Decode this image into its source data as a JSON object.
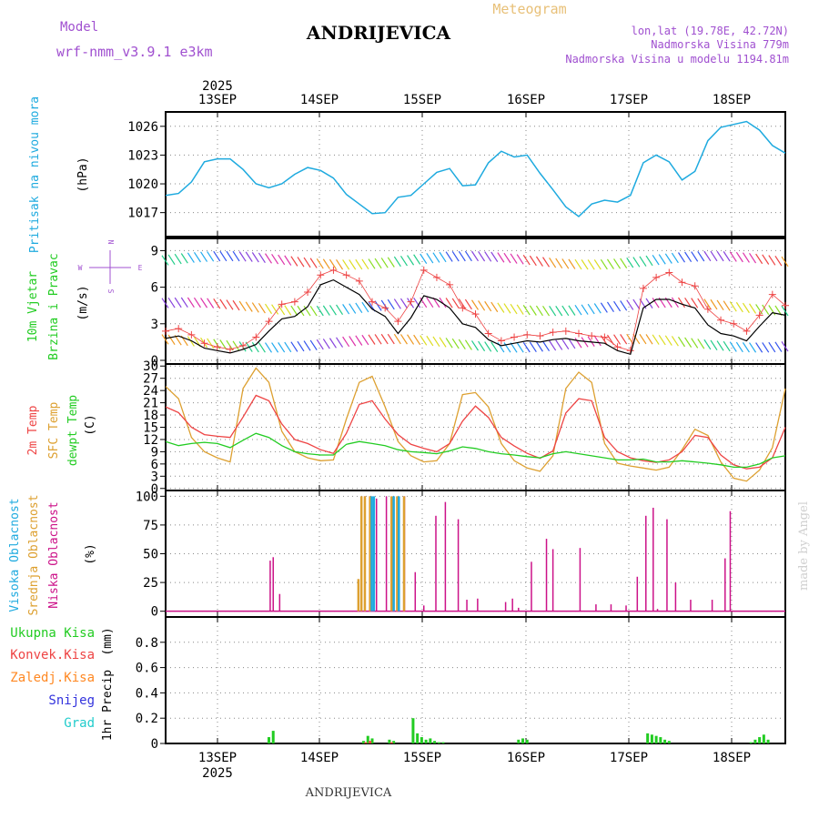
{
  "header": {
    "model_label": "Model",
    "model_name": "wrf-nmm_v3.9.1 e3km",
    "location": "ANDRIJEVICA",
    "meteogram": "Meteogram",
    "lonlat": "lon,lat (19.78E, 42.72N)",
    "elevation": "Nadmorska Visina 779m",
    "model_elevation": "Nadmorska Visina u modelu 1194.81m"
  },
  "footer": {
    "location": "ANDRIJEVICA",
    "watermark": "made by Angel"
  },
  "colors": {
    "pressure": "#1eaadf",
    "wind_speed": "#000000",
    "gust": "#ee4444",
    "t2m": "#ee4444",
    "sfc": "#dda030",
    "dewpt": "#22cc22",
    "high_cloud": "#1eaadf",
    "mid_cloud": "#dda030",
    "low_cloud": "#cc1188",
    "total_precip": "#22cc22",
    "conv_precip": "#ee4444",
    "frozen": "#ff8822",
    "snow": "#3333dd",
    "hail": "#22cccc",
    "model_purple": "#a050d0"
  },
  "chart_data": [
    {
      "id": "pressure",
      "type": "line",
      "ylabel_main": "Pritisak na nivou mora",
      "ylabel_unit": "(hPa)",
      "ylim": [
        1014.5,
        1027.5
      ],
      "yticks": [
        "1017",
        "1020",
        "1023",
        "1026"
      ],
      "xlim": [
        0,
        144
      ],
      "x_top_labels": [
        "13SEP",
        "14SEP",
        "15SEP",
        "16SEP",
        "17SEP",
        "18SEP"
      ],
      "x_top_year": "2025",
      "series": [
        {
          "name": "MSLP",
          "x": [
            0,
            3,
            6,
            9,
            12,
            15,
            18,
            21,
            24,
            27,
            30,
            33,
            36,
            39,
            42,
            45,
            48,
            51,
            54,
            57,
            60,
            63,
            66,
            69,
            72,
            75,
            78,
            81,
            84,
            87,
            90,
            93,
            96,
            99,
            102,
            105,
            108,
            111,
            114,
            117,
            120,
            123,
            126,
            129,
            132,
            135,
            138,
            141,
            144
          ],
          "values": [
            1018.8,
            1019.0,
            1020.2,
            1022.3,
            1022.6,
            1022.6,
            1021.5,
            1020.0,
            1019.6,
            1020.0,
            1021.0,
            1021.7,
            1021.4,
            1020.6,
            1018.9,
            1017.9,
            1016.9,
            1017.0,
            1018.6,
            1018.8,
            1020.0,
            1021.2,
            1021.6,
            1019.8,
            1019.9,
            1022.2,
            1023.4,
            1022.8,
            1023.0,
            1021.1,
            1019.4,
            1017.6,
            1016.6,
            1017.9,
            1018.3,
            1018.1,
            1018.8,
            1022.2,
            1023.0,
            1022.3,
            1020.4,
            1021.3,
            1024.5,
            1025.9,
            1026.2,
            1026.5,
            1025.6,
            1024.0,
            1023.2
          ]
        }
      ]
    },
    {
      "id": "wind",
      "type": "line",
      "ylabel_main": "10m Vjetar",
      "ylabel_sub": "Brzina i Pravac",
      "ylabel_unit": "(m/s)",
      "compass": {
        "n": "N",
        "s": "S",
        "e": "E",
        "w": "W"
      },
      "ylim": [
        -0.3,
        10
      ],
      "yticks": [
        "0",
        "3",
        "6",
        "9"
      ],
      "xlim": [
        0,
        144
      ],
      "series": [
        {
          "name": "Wind speed",
          "x": [
            0,
            3,
            6,
            9,
            12,
            15,
            18,
            21,
            24,
            27,
            30,
            33,
            36,
            39,
            42,
            45,
            48,
            51,
            54,
            57,
            60,
            63,
            66,
            69,
            72,
            75,
            78,
            81,
            84,
            87,
            90,
            93,
            96,
            99,
            102,
            105,
            108,
            111,
            114,
            117,
            120,
            123,
            126,
            129,
            132,
            135,
            138,
            141,
            144
          ],
          "values": [
            1.8,
            2.0,
            1.6,
            1.0,
            0.8,
            0.6,
            0.9,
            1.3,
            2.4,
            3.4,
            3.6,
            4.4,
            6.2,
            6.6,
            6.0,
            5.4,
            4.2,
            3.6,
            2.2,
            3.5,
            5.3,
            5.0,
            4.3,
            3.0,
            2.7,
            1.7,
            1.2,
            1.4,
            1.6,
            1.5,
            1.7,
            1.8,
            1.6,
            1.5,
            1.4,
            0.8,
            0.5,
            4.3,
            5.0,
            5.0,
            4.6,
            4.3,
            2.9,
            2.2,
            2.0,
            1.6,
            2.8,
            3.9,
            3.7
          ]
        },
        {
          "name": "Gust",
          "x": [
            0,
            3,
            6,
            9,
            12,
            15,
            18,
            21,
            24,
            27,
            30,
            33,
            36,
            39,
            42,
            45,
            48,
            51,
            54,
            57,
            60,
            63,
            66,
            69,
            72,
            75,
            78,
            81,
            84,
            87,
            90,
            93,
            96,
            99,
            102,
            105,
            108,
            111,
            114,
            117,
            120,
            123,
            126,
            129,
            132,
            135,
            138,
            141,
            144
          ],
          "values": [
            2.4,
            2.6,
            2.1,
            1.4,
            1.1,
            0.9,
            1.2,
            1.9,
            3.2,
            4.6,
            4.8,
            5.6,
            7.0,
            7.4,
            7.0,
            6.5,
            4.8,
            4.3,
            3.2,
            4.8,
            7.4,
            6.8,
            6.2,
            4.3,
            3.8,
            2.2,
            1.6,
            1.9,
            2.1,
            2.0,
            2.3,
            2.4,
            2.2,
            2.0,
            1.9,
            1.1,
            0.8,
            5.9,
            6.8,
            7.2,
            6.4,
            6.1,
            4.2,
            3.3,
            3.0,
            2.4,
            3.7,
            5.4,
            4.5
          ]
        }
      ]
    },
    {
      "id": "temperature",
      "type": "line",
      "ylabel_main": "2m Temp",
      "ylabel_sub": "SFC Temp",
      "ylabel_sub2": "dewpt Temp",
      "ylabel_unit": "(C)",
      "ylim": [
        -0.5,
        30.5
      ],
      "yticks": [
        "0",
        "3",
        "6",
        "9",
        "12",
        "15",
        "18",
        "21",
        "24",
        "27",
        "30"
      ],
      "xlim": [
        0,
        144
      ],
      "series": [
        {
          "name": "2m Temp",
          "x": [
            0,
            3,
            6,
            9,
            12,
            15,
            18,
            21,
            24,
            27,
            30,
            33,
            36,
            39,
            42,
            45,
            48,
            51,
            54,
            57,
            60,
            63,
            66,
            69,
            72,
            75,
            78,
            81,
            84,
            87,
            90,
            93,
            96,
            99,
            102,
            105,
            108,
            111,
            114,
            117,
            120,
            123,
            126,
            129,
            132,
            135,
            138,
            141,
            144
          ],
          "values": [
            20.0,
            18.6,
            15.0,
            13.2,
            12.8,
            12.5,
            17.5,
            22.8,
            21.5,
            15.8,
            12.0,
            11.0,
            9.5,
            8.6,
            13.5,
            20.6,
            21.5,
            17.0,
            13.2,
            10.8,
            9.8,
            9.0,
            11.0,
            16.5,
            20.2,
            17.4,
            12.5,
            10.4,
            8.6,
            7.4,
            9.2,
            18.5,
            22.0,
            21.5,
            12.5,
            9.0,
            7.5,
            6.8,
            6.4,
            7.0,
            9.0,
            13.0,
            12.5,
            8.2,
            5.8,
            4.8,
            5.2,
            7.5,
            15.0
          ]
        },
        {
          "name": "SFC Temp",
          "x": [
            0,
            3,
            6,
            9,
            12,
            15,
            18,
            21,
            24,
            27,
            30,
            33,
            36,
            39,
            42,
            45,
            48,
            51,
            54,
            57,
            60,
            63,
            66,
            69,
            72,
            75,
            78,
            81,
            84,
            87,
            90,
            93,
            96,
            99,
            102,
            105,
            108,
            111,
            114,
            117,
            120,
            123,
            126,
            129,
            132,
            135,
            138,
            141,
            144
          ],
          "values": [
            25.0,
            22.0,
            12.5,
            9.0,
            7.5,
            6.5,
            24.5,
            29.5,
            26.0,
            14.0,
            9.0,
            7.5,
            6.8,
            7.0,
            17.0,
            26.0,
            27.5,
            20.0,
            11.5,
            8.0,
            6.5,
            6.8,
            11.0,
            23.0,
            23.5,
            20.0,
            11.0,
            6.8,
            5.0,
            4.2,
            8.0,
            24.5,
            28.5,
            26.0,
            11.0,
            6.2,
            5.5,
            5.0,
            4.5,
            5.2,
            9.5,
            14.5,
            13.0,
            6.5,
            2.5,
            1.8,
            4.5,
            10.0,
            24.5
          ]
        },
        {
          "name": "dewpt Temp",
          "x": [
            0,
            3,
            6,
            9,
            12,
            15,
            18,
            21,
            24,
            27,
            30,
            33,
            36,
            39,
            42,
            45,
            48,
            51,
            54,
            57,
            60,
            63,
            66,
            69,
            72,
            75,
            78,
            81,
            84,
            87,
            90,
            93,
            96,
            99,
            102,
            105,
            108,
            111,
            114,
            117,
            120,
            123,
            126,
            129,
            132,
            135,
            138,
            141,
            144
          ],
          "values": [
            11.5,
            10.5,
            11.0,
            11.3,
            11.0,
            10.0,
            11.8,
            13.5,
            12.5,
            10.5,
            9.0,
            8.5,
            8.2,
            8.2,
            10.8,
            11.5,
            11.0,
            10.5,
            9.5,
            9.0,
            8.8,
            8.5,
            9.2,
            10.2,
            9.8,
            9.0,
            8.5,
            8.2,
            7.8,
            7.5,
            8.5,
            9.0,
            8.5,
            8.0,
            7.5,
            7.0,
            7.0,
            7.2,
            6.5,
            6.5,
            6.8,
            6.5,
            6.2,
            5.8,
            5.2,
            5.2,
            6.0,
            7.5,
            8.0
          ]
        }
      ]
    },
    {
      "id": "cloud",
      "type": "bar",
      "ylabel_main": "Visoka Oblacnost",
      "ylabel_sub": "Srednja Oblacnost",
      "ylabel_sub2": "Niska Oblacnost",
      "ylabel_unit": "(%)",
      "ylim": [
        -5,
        105
      ],
      "yticks": [
        "0",
        "25",
        "50",
        "75",
        "100"
      ],
      "xlim": [
        0,
        144
      ],
      "series": [
        {
          "name": "Low",
          "x": [
            24.3,
            25.0,
            26.5,
            46.3,
            47.5,
            49.0,
            51.3,
            53.0,
            55.5,
            58.0,
            60.0,
            62.8,
            65.0,
            68.0,
            70.0,
            72.5,
            79.0,
            80.6,
            82.0,
            85.0,
            88.5,
            90.0,
            96.3,
            100.0,
            103.5,
            107.0,
            109.6,
            111.6,
            113.3,
            114.3,
            116.5,
            118.5,
            122.0,
            127.0,
            130.0,
            131.2
          ],
          "values": [
            44,
            47,
            15,
            100,
            100,
            98,
            100,
            46,
            100,
            34,
            5,
            83,
            95,
            80,
            10,
            11,
            8,
            11,
            3,
            43,
            63,
            54,
            55,
            6,
            6,
            5,
            30,
            83,
            90,
            2,
            80,
            25,
            10,
            10,
            46,
            87
          ]
        },
        {
          "name": "Mid",
          "x": [
            44.8,
            45.5,
            46.3,
            47.5,
            52.5,
            53.8,
            55.4
          ],
          "values": [
            28,
            100,
            100,
            100,
            100,
            100,
            100
          ]
        },
        {
          "name": "High",
          "x": [
            47.9,
            48.4,
            53.0,
            54.2
          ],
          "values": [
            100,
            100,
            100,
            100
          ]
        }
      ]
    },
    {
      "id": "precip",
      "type": "bar",
      "ylabel_main": "1hr Precip",
      "ylabel_unit": "(mm)",
      "legend": [
        "Ukupna Kisa",
        "Konvek.Kisa",
        "Zaledj.Kisa",
        "Snijeg",
        "Grad"
      ],
      "ylim": [
        0,
        1.0
      ],
      "yticks": [
        "0",
        "0.2",
        "0.4",
        "0.6",
        "0.8"
      ],
      "xlim": [
        0,
        144
      ],
      "x_bottom_labels": [
        "13SEP",
        "14SEP",
        "15SEP",
        "16SEP",
        "17SEP",
        "18SEP"
      ],
      "x_bottom_year": "2025",
      "series": [
        {
          "name": "Ukupna Kisa",
          "x": [
            24.0,
            25.0,
            46.0,
            47.0,
            48.0,
            52.0,
            53.0,
            57.5,
            58.5,
            59.5,
            60.5,
            61.5,
            62.5,
            63.5,
            64.5,
            82.0,
            83.0,
            84.0,
            112.0,
            113.0,
            114.0,
            115.0,
            116.0,
            117.0,
            136.0,
            137.0,
            138.0,
            139.0,
            140.0
          ],
          "values": [
            0.05,
            0.1,
            0.02,
            0.06,
            0.04,
            0.03,
            0.02,
            0.2,
            0.08,
            0.05,
            0.03,
            0.04,
            0.02,
            0.01,
            0.01,
            0.03,
            0.04,
            0.03,
            0.08,
            0.07,
            0.06,
            0.05,
            0.03,
            0.02,
            0.01,
            0.03,
            0.05,
            0.07,
            0.03
          ]
        },
        {
          "name": "Konvek.Kisa",
          "x": [
            46.5,
            47.5,
            52.5
          ],
          "values": [
            0.01,
            0.02,
            0.01
          ]
        }
      ]
    }
  ]
}
